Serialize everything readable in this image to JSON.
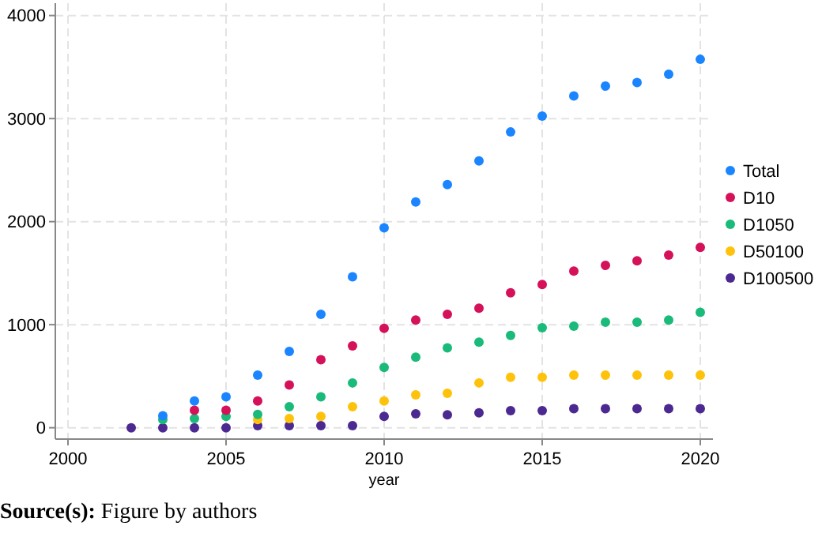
{
  "chart_data": {
    "type": "scatter",
    "xlabel": "year",
    "x": [
      2002,
      2003,
      2004,
      2005,
      2006,
      2007,
      2008,
      2009,
      2010,
      2011,
      2012,
      2013,
      2014,
      2015,
      2016,
      2017,
      2018,
      2019,
      2020
    ],
    "series": [
      {
        "name": "Total",
        "color": "#1a85ff",
        "values": [
          null,
          117,
          260,
          300,
          510,
          740,
          1100,
          1465,
          1940,
          2190,
          2360,
          2590,
          2870,
          3025,
          3220,
          3315,
          3350,
          3430,
          3575
        ]
      },
      {
        "name": "D10",
        "color": "#d41159",
        "values": [
          null,
          null,
          170,
          170,
          260,
          415,
          660,
          795,
          965,
          1045,
          1100,
          1160,
          1310,
          1390,
          1520,
          1575,
          1620,
          1675,
          1750
        ]
      },
      {
        "name": "D1050",
        "color": "#1aba7a",
        "values": [
          null,
          80,
          90,
          110,
          130,
          205,
          300,
          435,
          585,
          685,
          775,
          830,
          895,
          970,
          985,
          1025,
          1025,
          1045,
          1120
        ]
      },
      {
        "name": "D50100",
        "color": "#ffc20a",
        "values": [
          null,
          null,
          null,
          null,
          80,
          90,
          110,
          205,
          260,
          320,
          335,
          435,
          490,
          490,
          510,
          510,
          510,
          510,
          510
        ]
      },
      {
        "name": "D100500",
        "color": "#4b2991",
        "values": [
          0,
          0,
          0,
          0,
          20,
          20,
          20,
          20,
          110,
          135,
          125,
          145,
          165,
          165,
          185,
          185,
          185,
          185,
          185
        ]
      }
    ],
    "xlim": [
      1999.6,
      2020.4
    ],
    "xticks": [
      2000,
      2005,
      2010,
      2015,
      2020
    ],
    "ylim": [
      -110,
      4120
    ],
    "yticks": [
      0,
      1000,
      2000,
      3000,
      4000
    ],
    "grid": true,
    "legend": "right",
    "marker": "circle",
    "annotations": [
      "Source(s): Figure by authors"
    ]
  }
}
